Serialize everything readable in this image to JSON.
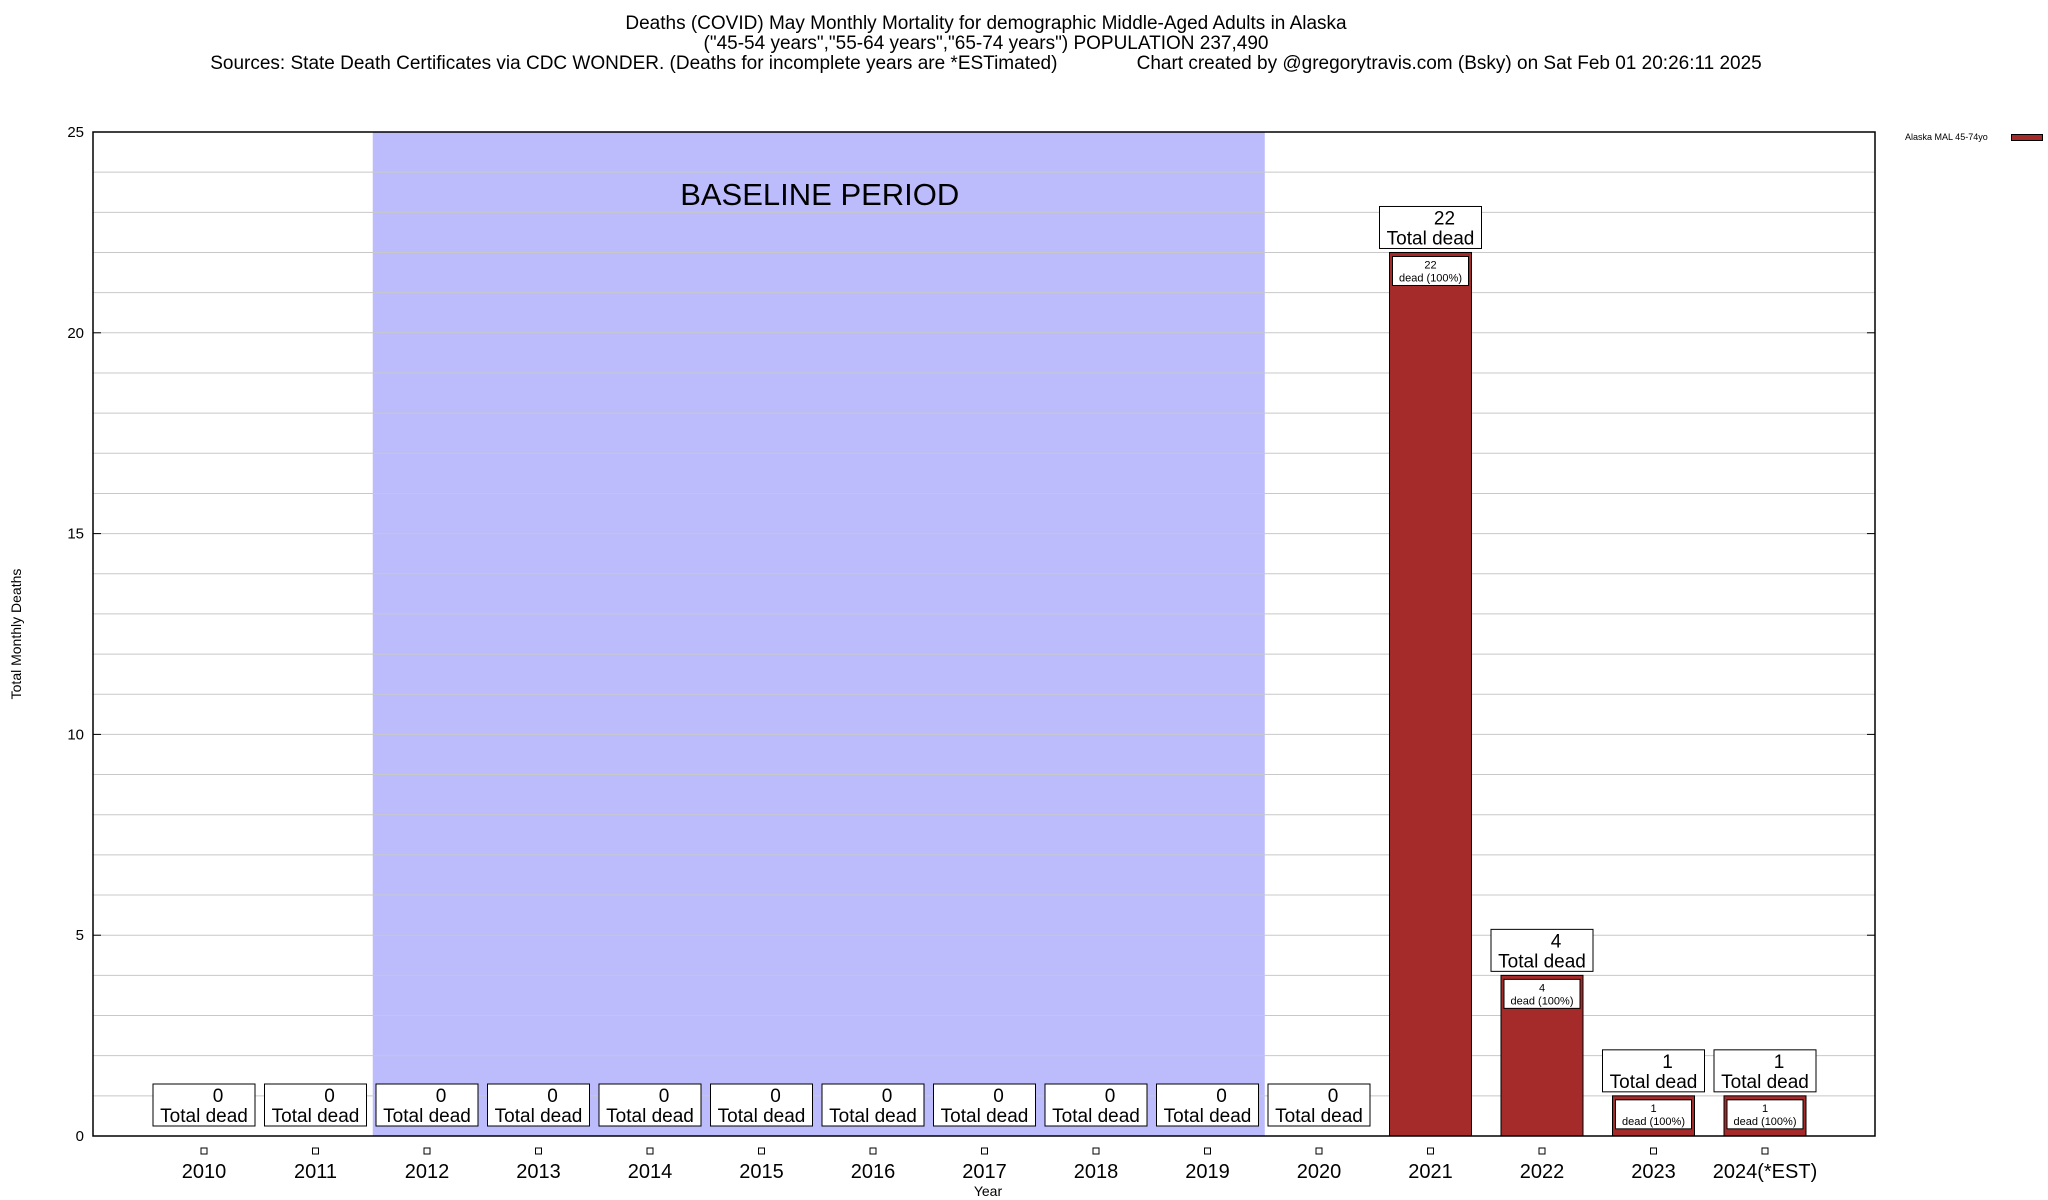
{
  "chart_data": {
    "type": "bar",
    "title_lines": [
      "Deaths (COVID) May Monthly Mortality for demographic Middle-Aged Adults in Alaska",
      "(\"45-54 years\",\"55-64 years\",\"65-74 years\") POPULATION 237,490",
      "Sources: State Death Certificates via CDC WONDER. (Deaths for incomplete years are *ESTimated)               Chart created by @gregorytravis.com (Bsky) on Sat Feb 01 20:26:11 2025"
    ],
    "xlabel": "Year",
    "ylabel": "Total Monthly Deaths",
    "ylim": [
      0,
      25
    ],
    "yticks": [
      0,
      5,
      10,
      15,
      20,
      25
    ],
    "categories": [
      "2010",
      "2011",
      "2012",
      "2013",
      "2014",
      "2015",
      "2016",
      "2017",
      "2018",
      "2019",
      "2020",
      "2021",
      "2022",
      "2023",
      "2024(*EST)"
    ],
    "series": [
      {
        "name": "Alaska MAL 45-74yo",
        "color": "#a52a2a",
        "values": [
          0,
          0,
          0,
          0,
          0,
          0,
          0,
          0,
          0,
          0,
          0,
          22,
          4,
          1,
          1
        ]
      }
    ],
    "total_label_text": "Total dead",
    "inner_label_suffix": "dead (100%)",
    "baseline": {
      "label": "BASELINE PERIOD",
      "from": "2012",
      "to": "2019",
      "color": "#bcbcfc"
    },
    "grid": true,
    "legend_position": "top-right"
  }
}
